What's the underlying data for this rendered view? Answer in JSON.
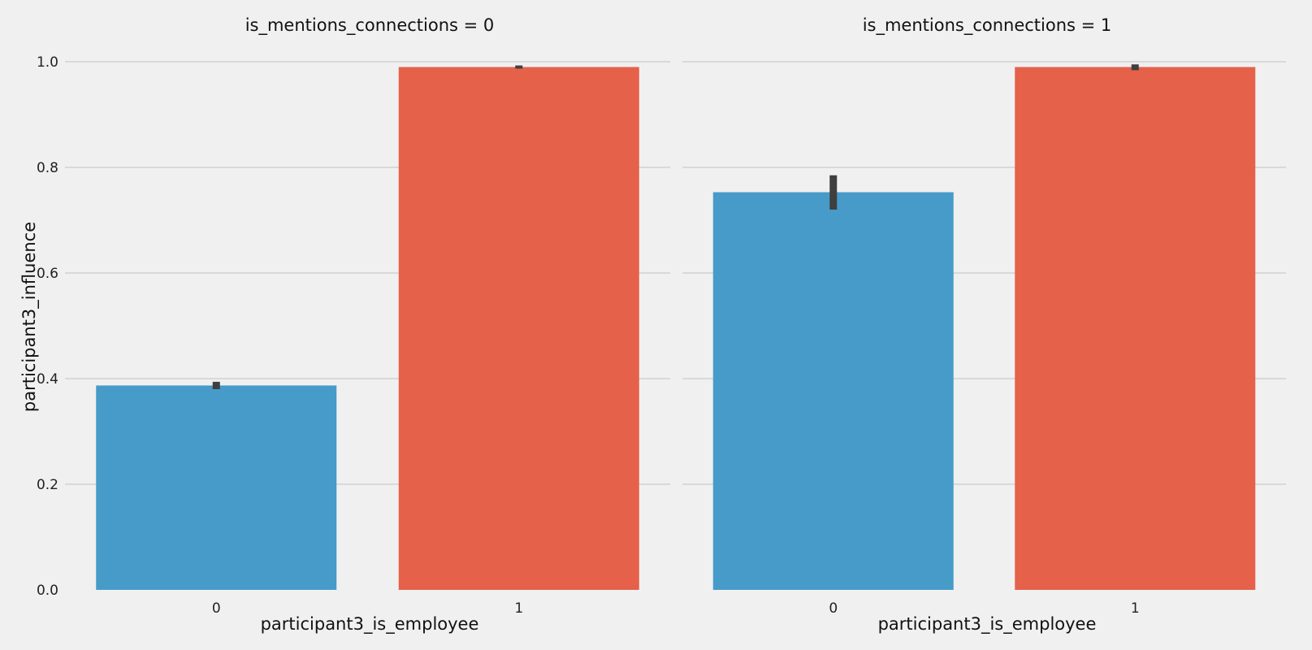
{
  "chart_data": {
    "type": "bar",
    "layout": "facet-columns",
    "ylabel": "participant3_influence",
    "ylim": [
      0,
      1.0
    ],
    "yticks": [
      0.0,
      0.2,
      0.4,
      0.6,
      0.8,
      1.0
    ],
    "ytick_labels": [
      "0.0",
      "0.2",
      "0.4",
      "0.6",
      "0.8",
      "1.0"
    ],
    "grid": "horizontal",
    "legend": "none",
    "colors": {
      "0": "#479bc9",
      "1": "#e5614a"
    },
    "panels": [
      {
        "title": "is_mentions_connections = 0",
        "xlabel": "participant3_is_employee",
        "categories": [
          "0",
          "1"
        ],
        "values": [
          0.387,
          0.99
        ],
        "error_bars": [
          [
            0.38,
            0.394
          ],
          [
            0.987,
            0.993
          ]
        ]
      },
      {
        "title": "is_mentions_connections = 1",
        "xlabel": "participant3_is_employee",
        "categories": [
          "0",
          "1"
        ],
        "values": [
          0.753,
          0.99
        ],
        "error_bars": [
          [
            0.72,
            0.785
          ],
          [
            0.984,
            0.995
          ]
        ]
      }
    ]
  }
}
